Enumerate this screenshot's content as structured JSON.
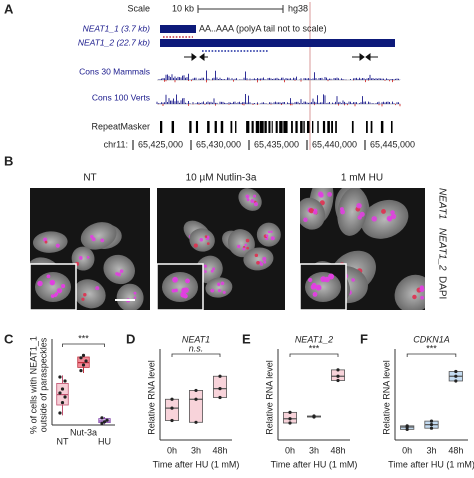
{
  "panelA": {
    "label": "A",
    "scale": "Scale",
    "scale_bar": "10 kb",
    "assembly": "hg38",
    "neat1_1": "NEAT1_1 (3.7 kb)",
    "neat1_2": "NEAT1_2 (22.7 kb)",
    "polya": "AA..AAA (polyA tail not to scale)",
    "cons30": "Cons 30 Mammals",
    "cons100": "Cons 100 Verts",
    "repeat": "RepeatMasker",
    "chrom": "chr11:",
    "coordinates": [
      "65,425,000",
      "65,430,000",
      "65,435,000",
      "65,440,000",
      "65,445,000"
    ]
  },
  "panelB": {
    "label": "B",
    "conditions": [
      "NT",
      "10 µM Nutlin-3a",
      "1 mM HU"
    ],
    "channels": [
      "NEAT1",
      "NEAT1_2",
      "DAPI"
    ]
  },
  "chart_data": [
    {
      "type": "box",
      "label": "C",
      "ylabel": [
        "% of cells with NEAT1_1",
        "outside of paraspeckles"
      ],
      "categories": [
        "NT",
        "Nut-3a",
        "HU"
      ],
      "annotation": "***",
      "ylim": [
        0,
        100
      ],
      "boxes": [
        {
          "min": 12,
          "q1": 25,
          "median": 38,
          "q3": 52,
          "max": 62,
          "color": "#f6cdd6",
          "edge": "#c0506e"
        },
        {
          "min": 65,
          "q1": 72,
          "median": 78,
          "q3": 85,
          "max": 88,
          "color": "#f28b98",
          "edge": "#c0303e"
        },
        {
          "min": 1,
          "q1": 3,
          "median": 5,
          "q3": 8,
          "max": 10,
          "color": "#d5b6ea",
          "edge": "#8a4fb0"
        }
      ],
      "points": [
        [
          15,
          28,
          35,
          40,
          45,
          55,
          60
        ],
        [
          68,
          75,
          80,
          84,
          87
        ],
        [
          2,
          4,
          6,
          9
        ]
      ]
    },
    {
      "type": "box",
      "label": "D",
      "title": "NEAT1",
      "ylabel": [
        "Relative RNA level"
      ],
      "xlabel": "Time after HU (1 mM)",
      "categories": [
        "0h",
        "3h",
        "48h"
      ],
      "annotation": "n.s.",
      "ylim": [
        0,
        2.4
      ],
      "boxes": [
        {
          "q1": 0.55,
          "median": 0.9,
          "q3": 1.15,
          "color": "#f8d3da",
          "edge": "#555"
        },
        {
          "q1": 0.5,
          "median": 1.15,
          "q3": 1.4,
          "color": "#f8d3da",
          "edge": "#555"
        },
        {
          "q1": 1.2,
          "median": 1.45,
          "q3": 1.8,
          "color": "#f8d3da",
          "edge": "#555"
        }
      ],
      "points": [
        [
          0.55,
          0.9,
          1.15
        ],
        [
          0.5,
          1.15,
          1.4
        ],
        [
          1.2,
          1.45,
          1.8
        ]
      ]
    },
    {
      "type": "box",
      "label": "E",
      "title": "NEAT1_2",
      "ylabel": [
        "Relative RNA level"
      ],
      "xlabel": "Time after HU (1 mM)",
      "categories": [
        "0h",
        "3h",
        "48h"
      ],
      "annotation": "***",
      "ylim": [
        0,
        4
      ],
      "boxes": [
        {
          "q1": 0.8,
          "median": 1.0,
          "q3": 1.3,
          "color": "#f8d3da",
          "edge": "#555"
        },
        {
          "q1": 1.08,
          "median": 1.1,
          "q3": 1.13,
          "color": "#f8d3da",
          "edge": "#555"
        },
        {
          "q1": 2.8,
          "median": 3.0,
          "q3": 3.3,
          "color": "#f8d3da",
          "edge": "#555"
        }
      ],
      "points": [
        [
          0.8,
          1.0,
          1.3
        ],
        [
          1.08,
          1.1,
          1.13
        ],
        [
          2.8,
          3.0,
          3.3
        ]
      ]
    },
    {
      "type": "box",
      "label": "F",
      "title": "CDKN1A",
      "ylabel": [
        "Relative RNA level"
      ],
      "xlabel": "Time after HU (1 mM)",
      "categories": [
        "0h",
        "3h",
        "48h"
      ],
      "annotation": "***",
      "ylim": [
        0,
        3.6
      ],
      "boxes": [
        {
          "q1": 0.45,
          "median": 0.55,
          "q3": 0.6,
          "color": "#c4dcf2",
          "edge": "#555"
        },
        {
          "q1": 0.5,
          "median": 0.65,
          "q3": 0.8,
          "color": "#c4dcf2",
          "edge": "#555"
        },
        {
          "q1": 2.5,
          "median": 2.7,
          "q3": 2.9,
          "color": "#c4dcf2",
          "edge": "#555"
        }
      ],
      "points": [
        [
          0.45,
          0.55,
          0.6
        ],
        [
          0.5,
          0.65,
          0.8
        ],
        [
          2.5,
          2.7,
          2.9
        ]
      ]
    }
  ]
}
